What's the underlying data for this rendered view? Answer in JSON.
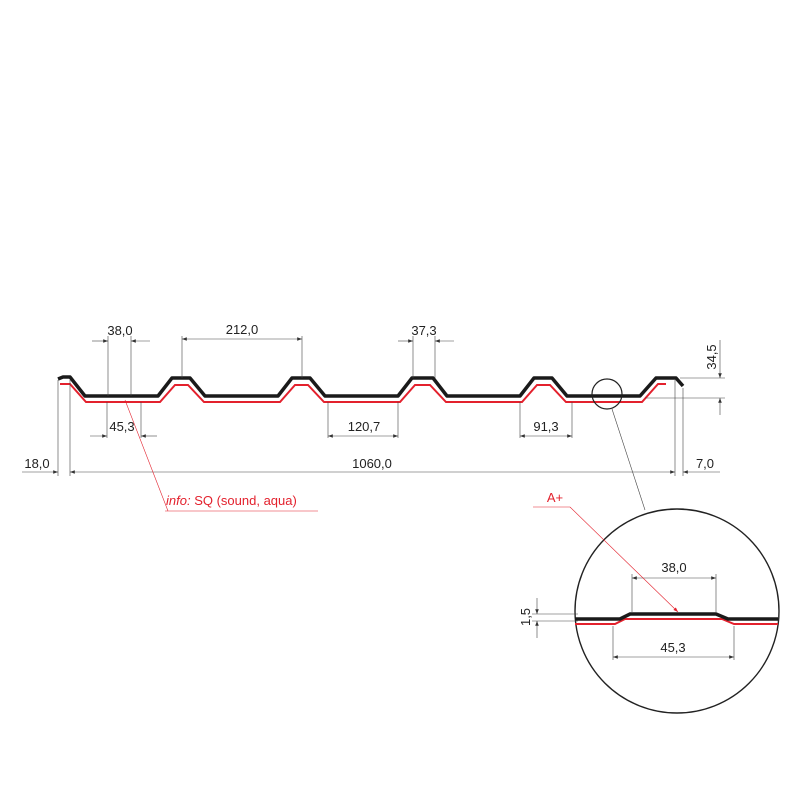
{
  "colors": {
    "profile": "#1a1a1a",
    "coating": "#e3212d",
    "dimension": "#444444"
  },
  "dimensions": {
    "crest_top": "38,0",
    "pitch": "212,0",
    "crest_top_2": "37,3",
    "valley_bottom": "45,3",
    "valley_width": "120,7",
    "valley_width_2": "91,3",
    "left_overhang": "18,0",
    "total_width": "1060,0",
    "right_edge": "7,0",
    "height": "34,5"
  },
  "detail": {
    "label": "A+",
    "top": "38,0",
    "bottom": "45,3",
    "thickness": "1,5"
  },
  "info": {
    "prefix": "info:",
    "text": "SQ (sound, aqua)"
  }
}
